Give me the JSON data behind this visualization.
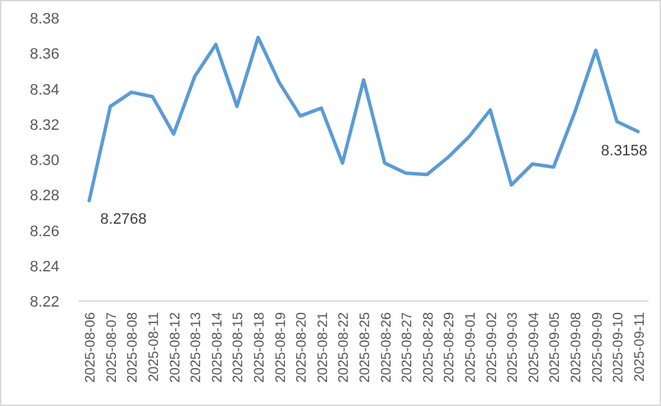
{
  "chart_data": {
    "type": "line",
    "categories": [
      "2025-08-06",
      "2025-08-07",
      "2025-08-08",
      "2025-08-11",
      "2025-08-12",
      "2025-08-13",
      "2025-08-14",
      "2025-08-15",
      "2025-08-18",
      "2025-08-19",
      "2025-08-20",
      "2025-08-21",
      "2025-08-22",
      "2025-08-25",
      "2025-08-26",
      "2025-08-27",
      "2025-08-28",
      "2025-08-29",
      "2025-09-01",
      "2025-09-02",
      "2025-09-03",
      "2025-09-04",
      "2025-09-05",
      "2025-09-08",
      "2025-09-09",
      "2025-09-10",
      "2025-09-11"
    ],
    "series": [
      {
        "color": "#5b9bd5",
        "values": [
          8.2768,
          8.33,
          8.338,
          8.3355,
          8.3144,
          8.347,
          8.365,
          8.33,
          8.369,
          8.3436,
          8.3246,
          8.329,
          8.298,
          8.345,
          8.298,
          8.2923,
          8.2915,
          8.3012,
          8.313,
          8.328,
          8.2856,
          8.2975,
          8.2957,
          8.3266,
          8.3617,
          8.3215,
          8.3158
        ],
        "value_labels": [
          "8.2768",
          null,
          null,
          null,
          null,
          null,
          null,
          null,
          null,
          null,
          null,
          null,
          null,
          null,
          null,
          null,
          null,
          null,
          null,
          null,
          null,
          null,
          null,
          null,
          null,
          null,
          "8.3158"
        ]
      }
    ],
    "ylim": [
      8.22,
      8.38
    ],
    "yticks": [
      {
        "value": 8.22,
        "label": "8.22"
      },
      {
        "value": 8.24,
        "label": "8.24"
      },
      {
        "value": 8.26,
        "label": "8.26"
      },
      {
        "value": 8.28,
        "label": "8.28"
      },
      {
        "value": 8.3,
        "label": "8.30"
      },
      {
        "value": 8.32,
        "label": "8.32"
      },
      {
        "value": 8.34,
        "label": "8.34"
      },
      {
        "value": 8.36,
        "label": "8.36"
      },
      {
        "value": 8.38,
        "label": "8.38"
      }
    ],
    "marker": "none",
    "line_style": "solid"
  }
}
